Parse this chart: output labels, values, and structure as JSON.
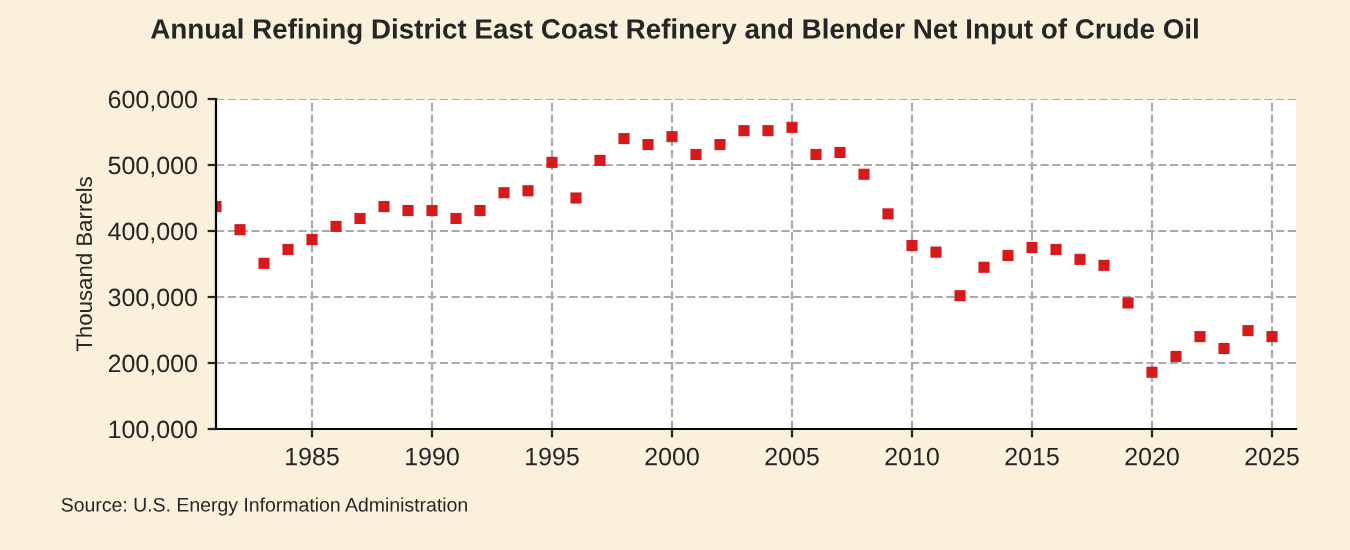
{
  "chart_data": {
    "type": "scatter",
    "title": "Annual Refining District East Coast Refinery and Blender Net Input of Crude Oil",
    "ylabel": "Thousand Barrels",
    "annotations": [
      "Source: U.S. Energy Information Administration"
    ],
    "x": [
      1981,
      1982,
      1983,
      1984,
      1985,
      1986,
      1987,
      1988,
      1989,
      1990,
      1991,
      1992,
      1993,
      1994,
      1995,
      1996,
      1997,
      1998,
      1999,
      2000,
      2001,
      2002,
      2003,
      2004,
      2005,
      2006,
      2007,
      2008,
      2009,
      2010,
      2011,
      2012,
      2013,
      2014,
      2015,
      2016,
      2017,
      2018,
      2019,
      2020,
      2021,
      2022,
      2023,
      2024,
      2025
    ],
    "series": [
      {
        "color": "#d7191c",
        "values": [
          437000,
          402000,
          351000,
          372000,
          387000,
          407000,
          419000,
          437000,
          431000,
          431000,
          419000,
          431000,
          458000,
          461000,
          504000,
          450000,
          507000,
          540000,
          531000,
          543000,
          516000,
          531000,
          552000,
          552000,
          557000,
          516000,
          519000,
          486000,
          426000,
          378000,
          368000,
          302000,
          345000,
          363000,
          375000,
          372000,
          357000,
          348000,
          291000,
          186000,
          210000,
          240000,
          222000,
          249000,
          240000
        ]
      }
    ],
    "xlim": [
      1981,
      2026
    ],
    "xticks": [
      1985,
      1990,
      1995,
      2000,
      2005,
      2010,
      2015,
      2020,
      2025
    ],
    "ylim": [
      100000,
      600000
    ],
    "yticks": [
      {
        "value": 100000,
        "label": "100,000"
      },
      {
        "value": 200000,
        "label": "200,000"
      },
      {
        "value": 300000,
        "label": "300,000"
      },
      {
        "value": 400000,
        "label": "400,000"
      },
      {
        "value": 500000,
        "label": "500,000"
      },
      {
        "value": 600000,
        "label": "600,000"
      }
    ],
    "grid": true,
    "marker": "square",
    "legend": false
  }
}
